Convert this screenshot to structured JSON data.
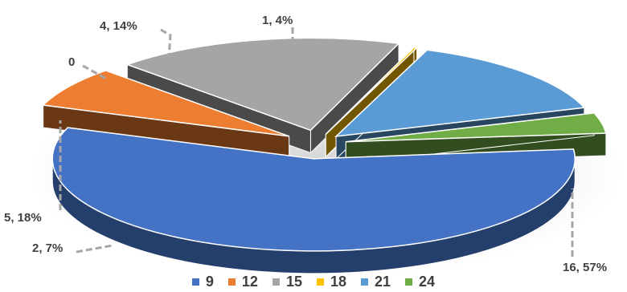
{
  "chart_data": {
    "type": "pie",
    "style": "3d-exploded",
    "title": "",
    "categories": [
      "9",
      "12",
      "15",
      "18",
      "21",
      "24"
    ],
    "values": [
      16,
      2,
      5,
      0,
      4,
      1
    ],
    "percents": [
      57,
      7,
      18,
      0,
      14,
      4
    ],
    "data_labels": [
      "16, 57%",
      "2, 7%",
      "5, 18%",
      "0",
      "4, 14%",
      "1, 4%"
    ],
    "colors": [
      "#4472c4",
      "#ed7d31",
      "#a5a5a5",
      "#ffc000",
      "#5b9bd5",
      "#70ad47"
    ],
    "legend_position": "bottom",
    "leader_lines": true
  }
}
